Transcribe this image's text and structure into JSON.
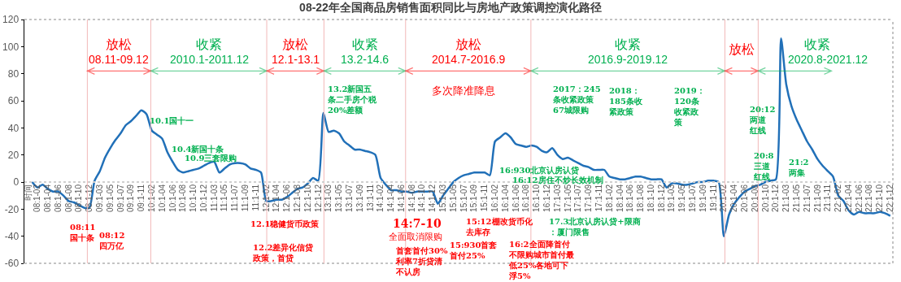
{
  "chart_data": {
    "type": "line",
    "title": "08-22年全国商品房销售面积同比与房地产政策调控演化路径",
    "categories": [
      "时间",
      "08:1-02",
      null,
      "08:1-04",
      null,
      "08:1-06",
      null,
      "08:1-08",
      null,
      "08:1-10",
      null,
      "08:1-12",
      null,
      "09:1-03",
      null,
      "09:1-05",
      null,
      "09:1-07",
      null,
      "09:1-09",
      null,
      "09:1-11",
      null,
      "10:1-02",
      null,
      "10:1-04",
      null,
      "10:1-06",
      null,
      "10:1-08",
      null,
      "10:1-10",
      null,
      "10:1-12",
      null,
      "11:1-03",
      null,
      "11:1-05",
      null,
      "11:1-07",
      null,
      "11:1-09",
      null,
      "11:1-11",
      null,
      "12:1-02",
      null,
      "12:1-04",
      null,
      "12:1-06",
      null,
      "12:1-08",
      null,
      "12:1-10",
      null,
      "12:1-12",
      null,
      "13:1-03",
      null,
      "13:1-05",
      null,
      "13:1-07",
      null,
      "13:1-09",
      null,
      "13:1-11",
      null,
      "14:1-02",
      null,
      "14:1-04",
      null,
      "14:1-06",
      null,
      "14:1-08",
      null,
      "14:1-10",
      null,
      "14:1-12",
      null,
      "15:1-03",
      null,
      "15:1-05",
      null,
      "15:1-07",
      null,
      "15:1-09",
      null,
      "15:1-11",
      null,
      "16:1-02",
      null,
      "16:1-04",
      null,
      "16:1-06",
      null,
      "16:1-08",
      null,
      "16:1-10",
      null,
      "16:1-12",
      null,
      "17:1-03",
      null,
      "17:1-05",
      null,
      "17:1-07",
      null,
      "17:1-09",
      null,
      "17:1-11",
      null,
      "18:1-02",
      null,
      "18:1-04",
      null,
      "18:1-06",
      null,
      "18:1-08",
      null,
      "18:1-10",
      null,
      "18:1-12",
      null,
      "19:1-03",
      null,
      "19:1-05",
      null,
      "19:1-07",
      null,
      "19:1-09",
      null,
      "19:1-11",
      null,
      "20:1-02",
      null,
      "20:1-04",
      null,
      "20:1-06",
      null,
      "20:1-08",
      null,
      "20:1-10",
      null,
      "20:1-12",
      null,
      "21:1-03",
      null,
      "21:1-05",
      null,
      "21:1-07",
      null,
      "21:1-09",
      null,
      "21:1-11",
      null,
      "22:1-02",
      null,
      "22:1-04",
      null,
      "22:1-06",
      null,
      "22:1-08",
      null,
      "22:1-10",
      null,
      "22:1-12"
    ],
    "series": [
      {
        "color": "#2170b8",
        "values": [
          0,
          -4,
          -2,
          -5,
          -7,
          -7,
          -10,
          -14,
          -15,
          -17,
          -19,
          -19,
          1,
          8,
          18,
          25,
          31,
          36,
          42,
          45,
          49,
          53,
          50,
          38,
          35,
          32,
          22,
          15,
          9,
          7,
          8,
          9,
          10,
          12,
          14,
          15,
          7,
          10,
          13,
          14,
          14,
          13,
          10,
          9,
          7,
          -14,
          -14,
          -13,
          -13,
          -11,
          -8,
          -5,
          -4,
          -1,
          3,
          1,
          51,
          37,
          38,
          36,
          30,
          27,
          24,
          24,
          23,
          22,
          20,
          3,
          -2,
          -6,
          -6,
          -7,
          -7,
          -8,
          -7,
          -7,
          -7,
          -7,
          -16,
          -10,
          -5,
          0,
          3,
          5,
          6,
          7,
          7,
          7,
          5,
          30,
          33,
          36,
          33,
          28,
          27,
          26,
          27,
          26,
          23,
          22,
          25,
          20,
          17,
          18,
          16,
          14,
          12,
          11,
          9,
          9,
          9,
          4,
          3,
          2,
          2,
          3,
          4,
          4,
          3,
          2,
          2,
          2,
          -4,
          -1,
          -1,
          -2,
          -2,
          -1,
          0,
          0,
          1,
          1,
          0,
          -40,
          -24,
          -16,
          -11,
          -7,
          -5,
          -3,
          -2,
          0,
          1,
          2,
          106,
          72,
          56,
          46,
          38,
          30,
          24,
          17,
          12,
          8,
          4,
          -10,
          -14,
          -21,
          -24,
          -22,
          -23,
          -23,
          -23,
          -22,
          -23,
          -25
        ]
      }
    ],
    "ylim": [
      -60,
      120
    ],
    "yticks": [
      -60,
      -40,
      -20,
      0,
      20,
      40,
      60,
      80,
      100,
      120
    ],
    "ref_lines": [
      {
        "axis": "y",
        "value": 0,
        "color": "#cfcfcf",
        "line_style": "dotted"
      }
    ],
    "annotations": [
      "放松",
      "08.11-09.12",
      "收紧",
      "2010.1-2011.12",
      "放松",
      "12.1-13.1",
      "收紧",
      "13.2-14.6",
      "放松",
      "2014.7-2016.9",
      "收紧",
      "2016.9-2019.12",
      "放松",
      "收紧",
      "2020.8-2021.12",
      "08:11国十条",
      "08:12四万亿",
      "12.1稳健货币政策",
      "12.2差异化信贷政策，首贷",
      "14:7-10",
      "全面取消限购",
      "首套首付30%利率7折贷清不认房",
      "15:12棚改货币化去库存",
      "15:930首套首付25%",
      "16:2全面降首付不限购城市首付最低25%各地可下浮5%",
      "多次降准降息",
      "10.1国十一",
      "10.4新国十条",
      "10.9三套限购",
      "13.2新国五条二手房个税20%差额",
      "2017：245条收紧政策67城限购",
      "2018：185条收紧政策",
      "2019：120条收紧政策",
      "16:930北京认房认贷",
      "16:12房住不炒长效机制",
      "17.3北京认房认贷+限商：厦门限售",
      "20:8三道红线",
      "20:12两道红线",
      "21:2两集"
    ]
  }
}
